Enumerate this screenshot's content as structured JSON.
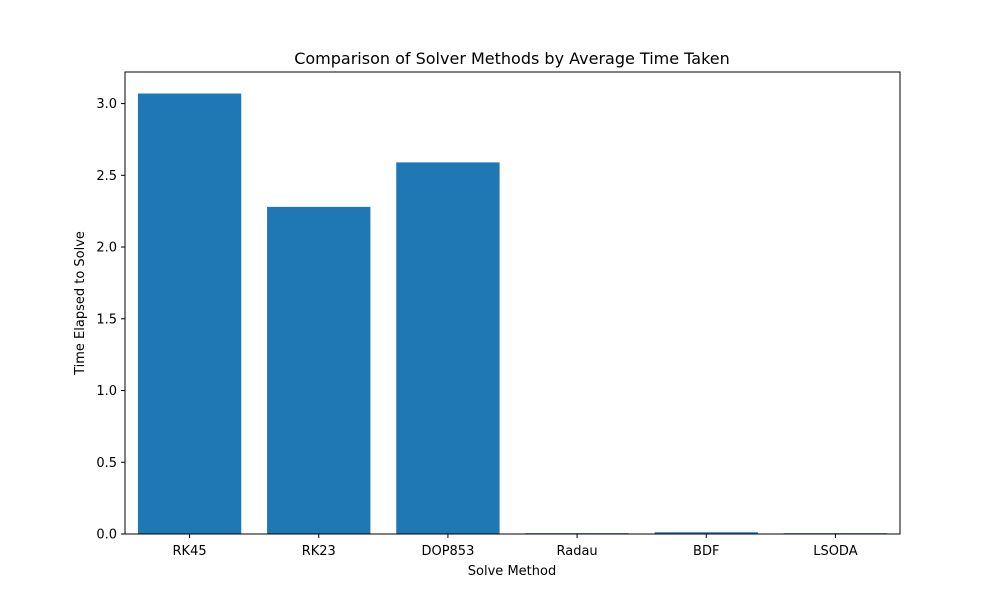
{
  "chart_data": {
    "type": "bar",
    "title": "Comparison of Solver Methods by Average Time Taken",
    "xlabel": "Solve Method",
    "ylabel": "Time Elapsed to Solve",
    "categories": [
      "RK45",
      "RK23",
      "DOP853",
      "Radau",
      "BDF",
      "LSODA"
    ],
    "values": [
      3.07,
      2.28,
      2.59,
      0.005,
      0.012,
      0.001
    ],
    "ylim": [
      0,
      3.22
    ],
    "yticks": [
      0.0,
      0.5,
      1.0,
      1.5,
      2.0,
      2.5,
      3.0
    ],
    "ytick_labels": [
      "0.0",
      "0.5",
      "1.0",
      "1.5",
      "2.0",
      "2.5",
      "3.0"
    ],
    "bar_color": "#1f77b4",
    "grid": false,
    "legend": "none"
  }
}
